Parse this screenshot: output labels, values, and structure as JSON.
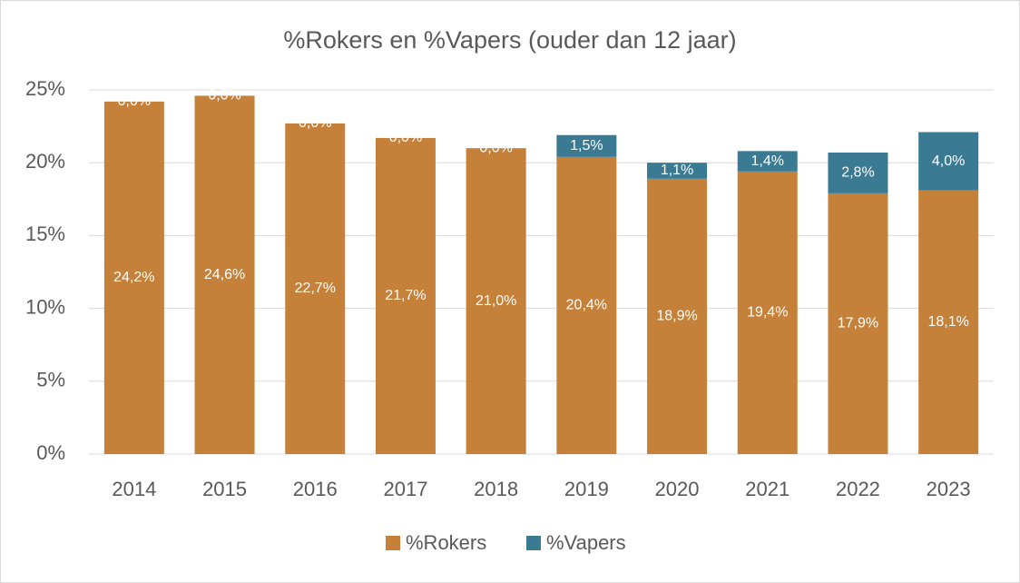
{
  "chart_data": {
    "type": "stacked-bar",
    "title": "%Rokers en %Vapers (ouder dan 12 jaar)",
    "categories": [
      "2014",
      "2015",
      "2016",
      "2017",
      "2018",
      "2019",
      "2020",
      "2021",
      "2022",
      "2023"
    ],
    "series": [
      {
        "name": "%Rokers",
        "color": "#c5813a",
        "values": [
          24.2,
          24.6,
          22.7,
          21.7,
          21.0,
          20.4,
          18.9,
          19.4,
          17.9,
          18.1
        ],
        "value_labels": [
          "24,2%",
          "24,6%",
          "22,7%",
          "21,7%",
          "21,0%",
          "20,4%",
          "18,9%",
          "19,4%",
          "17,9%",
          "18,1%"
        ]
      },
      {
        "name": "%Vapers",
        "color": "#3b7a93",
        "values": [
          0,
          0,
          0,
          0,
          0,
          1.5,
          1.1,
          1.4,
          2.8,
          4.0
        ],
        "value_labels": [
          "0,0%",
          "0,0%",
          "0,0%",
          "0,0%",
          "0,0%",
          "1,5%",
          "1,1%",
          "1,4%",
          "2,8%",
          "4,0%"
        ]
      }
    ],
    "ylim": [
      0,
      25
    ],
    "yticks": [
      {
        "value": 0,
        "label": "0%"
      },
      {
        "value": 5,
        "label": "5%"
      },
      {
        "value": 10,
        "label": "10%"
      },
      {
        "value": 15,
        "label": "15%"
      },
      {
        "value": 20,
        "label": "20%"
      },
      {
        "value": 25,
        "label": "25%"
      }
    ],
    "grid": true,
    "legend": "bottom"
  }
}
